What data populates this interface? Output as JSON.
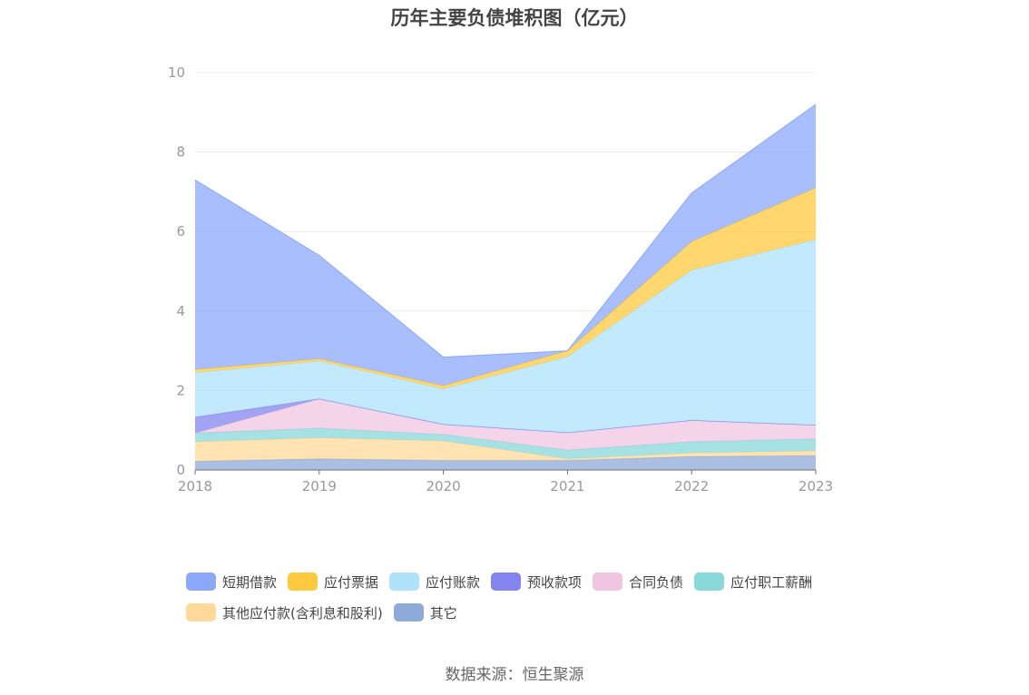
{
  "chart_data": {
    "type": "area",
    "stacked": true,
    "title": "历年主要负债堆积图（亿元）",
    "categories": [
      "2018",
      "2019",
      "2020",
      "2021",
      "2022",
      "2023"
    ],
    "ylim": [
      0,
      10
    ],
    "yticks": [
      "0",
      "2",
      "4",
      "6",
      "8",
      "10"
    ],
    "grid": true,
    "legend_position": "bottom",
    "series": [
      {
        "name": "其它",
        "color": "#8eaad8",
        "values": [
          0.22,
          0.28,
          0.24,
          0.24,
          0.34,
          0.36
        ]
      },
      {
        "name": "其他应付款(含利息和股利)",
        "color": "#ffd99a",
        "values": [
          0.49,
          0.53,
          0.49,
          0.04,
          0.09,
          0.12
        ]
      },
      {
        "name": "应付职工薪酬",
        "color": "#88d8da",
        "values": [
          0.22,
          0.24,
          0.16,
          0.22,
          0.28,
          0.3
        ]
      },
      {
        "name": "合同负债",
        "color": "#f0c5e0",
        "values": [
          0.0,
          0.74,
          0.26,
          0.44,
          0.54,
          0.35
        ]
      },
      {
        "name": "预收款项",
        "color": "#8484f0",
        "values": [
          0.4,
          0.0,
          0.0,
          0.0,
          0.0,
          0.0
        ]
      },
      {
        "name": "应付账款",
        "color": "#aee3fb",
        "values": [
          1.12,
          0.95,
          0.89,
          1.91,
          3.78,
          4.67
        ]
      },
      {
        "name": "应付票据",
        "color": "#ffc93d",
        "values": [
          0.08,
          0.06,
          0.08,
          0.15,
          0.72,
          1.3
        ]
      },
      {
        "name": "短期借款",
        "color": "#8ca8fb",
        "values": [
          4.77,
          2.6,
          0.72,
          0.0,
          1.22,
          2.1
        ]
      }
    ]
  },
  "legend_order": [
    {
      "name": "短期借款",
      "color": "#8ca8fb"
    },
    {
      "name": "应付票据",
      "color": "#ffc93d"
    },
    {
      "name": "应付账款",
      "color": "#aee3fb"
    },
    {
      "name": "预收款项",
      "color": "#8484f0"
    },
    {
      "name": "合同负债",
      "color": "#f0c5e0"
    },
    {
      "name": "应付职工薪酬",
      "color": "#88d8da"
    },
    {
      "name": "其他应付款(含利息和股利)",
      "color": "#ffd99a"
    },
    {
      "name": "其它",
      "color": "#8eaad8"
    }
  ],
  "source_note": "数据来源：恒生聚源"
}
